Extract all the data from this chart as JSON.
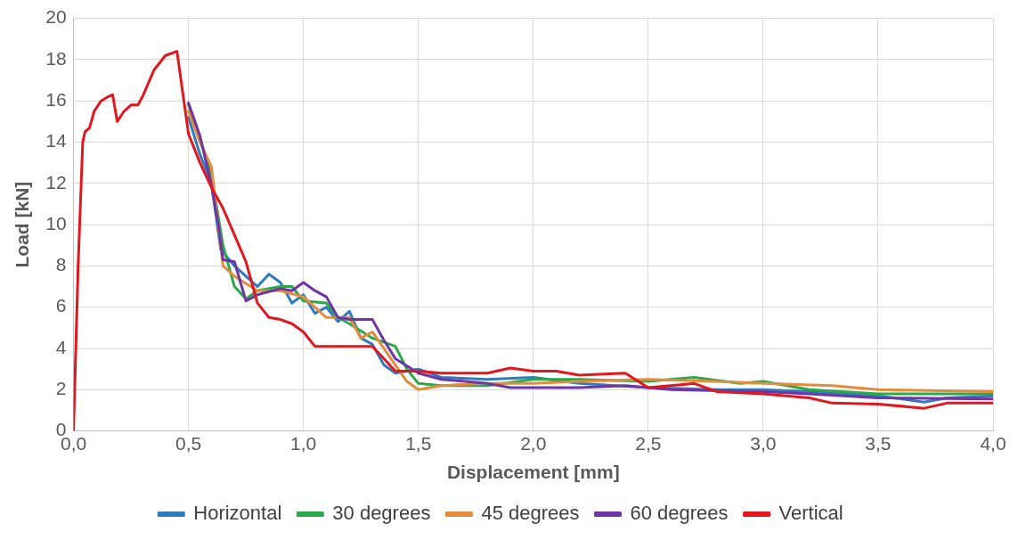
{
  "chart_data": {
    "type": "line",
    "xlabel": "Displacement [mm]",
    "ylabel": "Load [kN]",
    "xlim": [
      0,
      4
    ],
    "xticks": [
      {
        "value": 0,
        "label": "0,0"
      },
      {
        "value": 0.5,
        "label": "0,5"
      },
      {
        "value": 1,
        "label": "1,0"
      },
      {
        "value": 1.5,
        "label": "1,5"
      },
      {
        "value": 2,
        "label": "2,0"
      },
      {
        "value": 2.5,
        "label": "2,5"
      },
      {
        "value": 3,
        "label": "3,0"
      },
      {
        "value": 3.5,
        "label": "3,5"
      },
      {
        "value": 4,
        "label": "4,0"
      }
    ],
    "ylim": [
      0,
      20
    ],
    "yticks": [
      0,
      2,
      4,
      6,
      8,
      10,
      12,
      14,
      16,
      18,
      20
    ],
    "grid": true,
    "legend": "bottom",
    "marker": "none",
    "line_style": "solid",
    "series": [
      {
        "name": "Horizontal",
        "color": "#2e7bbf",
        "x": [
          0.5,
          0.55,
          0.6,
          0.64,
          0.7,
          0.8,
          0.85,
          0.9,
          0.95,
          1.0,
          1.05,
          1.1,
          1.15,
          1.2,
          1.25,
          1.3,
          1.35,
          1.4,
          1.5,
          1.6,
          1.8,
          2.0,
          2.2,
          2.5,
          2.8,
          3.0,
          3.2,
          3.5,
          3.7,
          3.8,
          4.0
        ],
        "values": [
          15.2,
          13.4,
          12,
          8.8,
          8,
          7,
          7.6,
          7.2,
          6.2,
          6.6,
          5.7,
          6,
          5.3,
          5.8,
          4.5,
          4.2,
          3.2,
          2.8,
          3,
          2.6,
          2.5,
          2.6,
          2.3,
          2.1,
          2,
          2,
          1.9,
          1.7,
          1.4,
          1.6,
          1.7
        ]
      },
      {
        "name": "30 degrees",
        "color": "#2aa84a",
        "x": [
          0.5,
          0.55,
          0.6,
          0.65,
          0.68,
          0.7,
          0.75,
          0.8,
          0.9,
          0.95,
          1.0,
          1.1,
          1.15,
          1.2,
          1.3,
          1.4,
          1.45,
          1.5,
          1.6,
          1.8,
          2.0,
          2.2,
          2.5,
          2.7,
          2.9,
          3.0,
          3.2,
          3.5,
          4.0
        ],
        "values": [
          15.8,
          14.2,
          12.4,
          9,
          7.8,
          7,
          6.4,
          6.8,
          7,
          7,
          6.3,
          6.2,
          5.5,
          5.2,
          4.5,
          4.1,
          3,
          2.3,
          2.2,
          2.2,
          2.5,
          2.5,
          2.4,
          2.6,
          2.3,
          2.4,
          2,
          1.8,
          1.8
        ]
      },
      {
        "name": "45 degrees",
        "color": "#e58c3c",
        "x": [
          0.5,
          0.55,
          0.6,
          0.65,
          0.7,
          0.8,
          0.9,
          1.0,
          1.1,
          1.2,
          1.25,
          1.3,
          1.4,
          1.45,
          1.5,
          1.6,
          1.8,
          2.0,
          2.2,
          2.5,
          2.8,
          3.0,
          3.3,
          3.5,
          4.0
        ],
        "values": [
          15.5,
          14,
          12.8,
          8,
          7.5,
          6.8,
          6.8,
          6.5,
          5.5,
          5.5,
          4.5,
          4.8,
          3.2,
          2.4,
          2,
          2.2,
          2.3,
          2.3,
          2.4,
          2.5,
          2.4,
          2.3,
          2.2,
          2,
          1.9
        ]
      },
      {
        "name": "60 degrees",
        "color": "#7034a4",
        "x": [
          0.5,
          0.55,
          0.6,
          0.63,
          0.65,
          0.7,
          0.75,
          0.8,
          0.9,
          0.95,
          1.0,
          1.05,
          1.1,
          1.15,
          1.2,
          1.3,
          1.35,
          1.4,
          1.5,
          1.6,
          1.8,
          1.9,
          2.0,
          2.2,
          2.4,
          2.6,
          3.0,
          3.2,
          3.5,
          4.0
        ],
        "values": [
          15.9,
          14.3,
          11.9,
          10,
          8.3,
          8.2,
          6.3,
          6.6,
          6.9,
          6.8,
          7.2,
          6.8,
          6.5,
          5.5,
          5.4,
          5.4,
          4.4,
          3.5,
          2.8,
          2.5,
          2.3,
          2.1,
          2.1,
          2.1,
          2.2,
          2,
          1.9,
          1.8,
          1.6,
          1.55
        ]
      },
      {
        "name": "Vertical",
        "color": "#e3161d",
        "x": [
          0,
          0.02,
          0.04,
          0.05,
          0.07,
          0.09,
          0.12,
          0.15,
          0.17,
          0.19,
          0.22,
          0.25,
          0.28,
          0.3,
          0.35,
          0.4,
          0.45,
          0.5,
          0.55,
          0.6,
          0.65,
          0.7,
          0.75,
          0.8,
          0.85,
          0.9,
          0.95,
          1.0,
          1.05,
          1.2,
          1.3,
          1.35,
          1.4,
          1.5,
          1.6,
          1.8,
          1.9,
          2.0,
          2.1,
          2.2,
          2.4,
          2.5,
          2.7,
          2.8,
          3.0,
          3.2,
          3.3,
          3.5,
          3.7,
          3.8,
          4.0
        ],
        "values": [
          0,
          8,
          14,
          14.5,
          14.7,
          15.5,
          16,
          16.2,
          16.3,
          15,
          15.5,
          15.8,
          15.8,
          16.2,
          17.5,
          18.2,
          18.4,
          14.4,
          13,
          11.8,
          10.8,
          9.5,
          8.2,
          6.2,
          5.5,
          5.4,
          5.2,
          4.8,
          4.1,
          4.1,
          4.1,
          3.5,
          2.9,
          2.9,
          2.8,
          2.8,
          3.05,
          2.9,
          2.9,
          2.7,
          2.8,
          2.1,
          2.3,
          1.9,
          1.8,
          1.6,
          1.35,
          1.3,
          1.1,
          1.35,
          1.35
        ]
      }
    ]
  }
}
